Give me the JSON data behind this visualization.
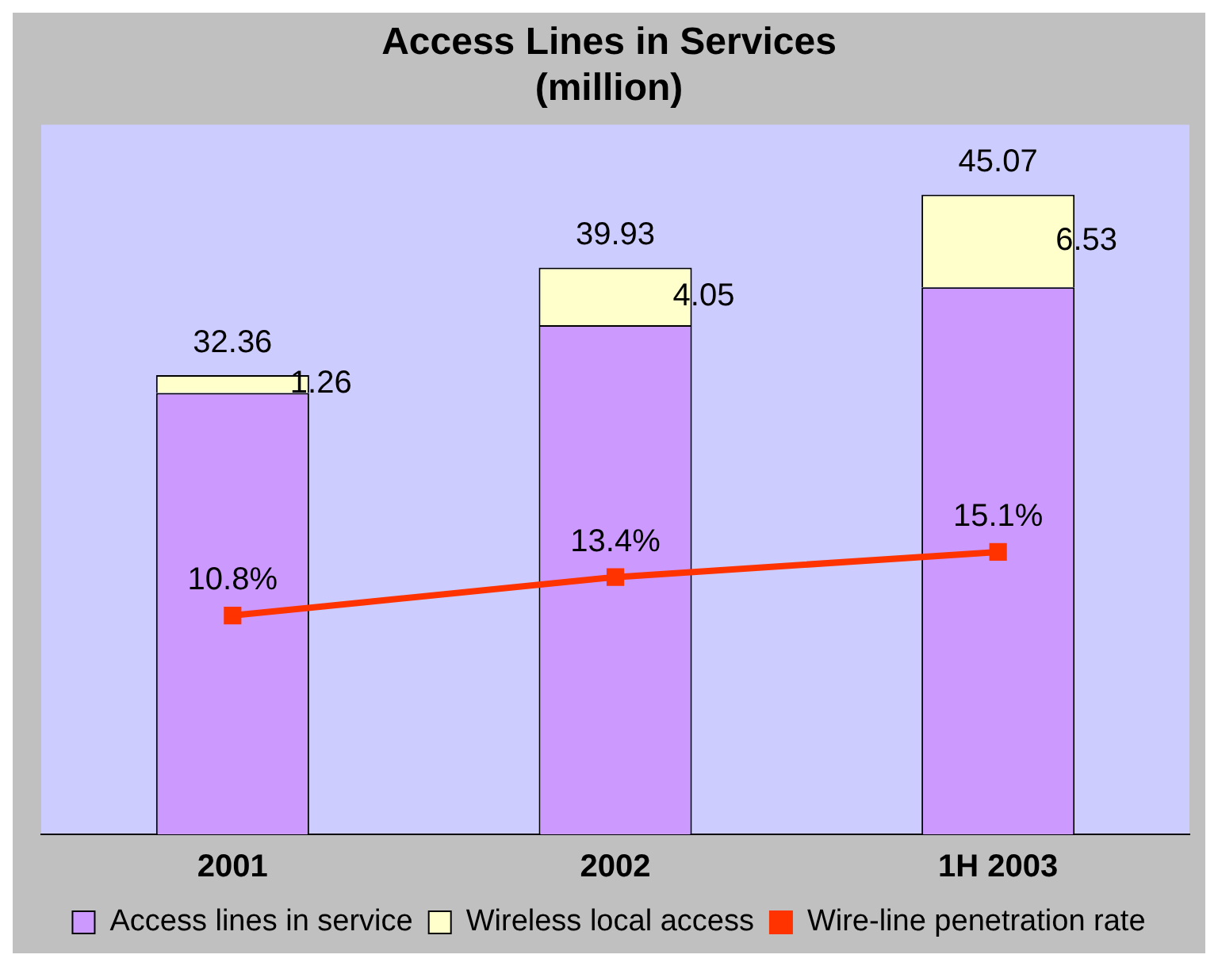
{
  "chart_data": {
    "type": "bar",
    "title": "Access Lines in Services\n(million)",
    "categories": [
      "2001",
      "2002",
      "1H 2003"
    ],
    "stacked": true,
    "series": [
      {
        "name": "Access lines in service",
        "color": "#cc99ff",
        "values": [
          31.1,
          35.88,
          38.54
        ]
      },
      {
        "name": "Wireless local access",
        "color": "#ffffcc",
        "values": [
          1.26,
          4.05,
          6.53
        ],
        "value_labels": [
          "1.26",
          "4.05",
          "6.53"
        ]
      },
      {
        "name": "Wire-line penetration rate",
        "type": "line",
        "axis": "y2",
        "color": "#ff3300",
        "values": [
          10.8,
          13.4,
          15.1
        ],
        "value_labels": [
          "10.8%",
          "13.4%",
          "15.1%"
        ]
      }
    ],
    "totals": [
      "32.36",
      "39.93",
      "45.07"
    ],
    "relative": false,
    "y2lim": [
      -4,
      44
    ],
    "marker": "square",
    "grid": false,
    "legend": "bottom"
  }
}
